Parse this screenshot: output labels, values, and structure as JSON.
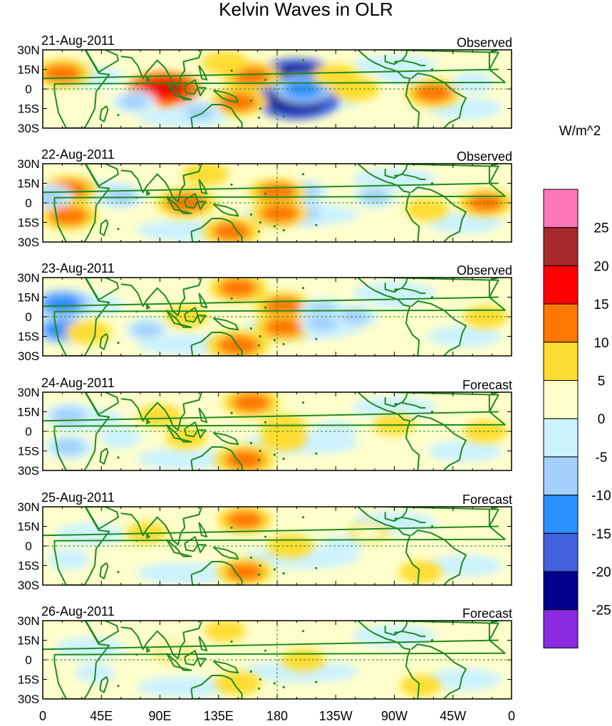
{
  "chart_data": {
    "type": "heatmap",
    "title": "Kelvin Waves in OLR",
    "units": "W/m^2",
    "lat_tick_labels": [
      "30N",
      "15N",
      "0",
      "15S",
      "30S"
    ],
    "lon_tick_labels": [
      "0",
      "45E",
      "90E",
      "135E",
      "180",
      "135W",
      "90W",
      "45W",
      "0"
    ],
    "lon_range": [
      0,
      360
    ],
    "lat_range": [
      -30,
      30
    ],
    "colorbar": {
      "levels": [
        -25,
        -20,
        -15,
        -10,
        -5,
        0,
        5,
        10,
        15,
        20,
        25
      ],
      "level_labels": [
        "25",
        "20",
        "15",
        "10",
        "5",
        "0",
        "-5",
        "-10",
        "-15",
        "-20",
        "-25"
      ],
      "colors_top_to_bottom": [
        "#ff77bb",
        "#a62a2a",
        "#ff0000",
        "#ff7700",
        "#ffdd33",
        "#ffffcc",
        "#ccf2ff",
        "#a3d0ff",
        "#2a90ff",
        "#4060dd",
        "#00008b",
        "#8a2be2"
      ]
    },
    "panels": [
      {
        "date": "21-Aug-2011",
        "label": "Observed",
        "features": [
          {
            "lon": 195,
            "lat": 8,
            "value": -24
          },
          {
            "lon": 195,
            "lat": -8,
            "value": -24
          },
          {
            "lon": 200,
            "lat": 0,
            "value": -12
          },
          {
            "lon": 93,
            "lat": 0,
            "value": 18
          },
          {
            "lon": 160,
            "lat": 10,
            "value": 12
          },
          {
            "lon": 150,
            "lat": -10,
            "value": 12
          },
          {
            "lon": 15,
            "lat": 12,
            "value": 12
          },
          {
            "lon": 300,
            "lat": -3,
            "value": 12
          },
          {
            "lon": 225,
            "lat": 10,
            "value": 7
          },
          {
            "lon": 240,
            "lat": 0,
            "value": 8
          },
          {
            "lon": 120,
            "lat": -18,
            "value": -6
          },
          {
            "lon": 70,
            "lat": -10,
            "value": -6
          },
          {
            "lon": 275,
            "lat": 12,
            "value": -5
          },
          {
            "lon": 330,
            "lat": 5,
            "value": -5
          },
          {
            "lon": 140,
            "lat": 20,
            "value": 7
          }
        ]
      },
      {
        "date": "22-Aug-2011",
        "label": "Observed",
        "features": [
          {
            "lon": 200,
            "lat": 8,
            "value": -8
          },
          {
            "lon": 200,
            "lat": -8,
            "value": -8
          },
          {
            "lon": 180,
            "lat": 8,
            "value": 12
          },
          {
            "lon": 182,
            "lat": -8,
            "value": 12
          },
          {
            "lon": 110,
            "lat": 0,
            "value": 13
          },
          {
            "lon": 145,
            "lat": -22,
            "value": 12
          },
          {
            "lon": 20,
            "lat": 10,
            "value": 12
          },
          {
            "lon": 20,
            "lat": -10,
            "value": 12
          },
          {
            "lon": 125,
            "lat": 22,
            "value": 7
          },
          {
            "lon": 340,
            "lat": 0,
            "value": 11
          },
          {
            "lon": 60,
            "lat": 5,
            "value": -7
          },
          {
            "lon": 255,
            "lat": 5,
            "value": -6
          },
          {
            "lon": 295,
            "lat": -5,
            "value": 6
          },
          {
            "lon": 5,
            "lat": 5,
            "value": -7
          }
        ]
      },
      {
        "date": "23-Aug-2011",
        "label": "Observed",
        "features": [
          {
            "lon": 185,
            "lat": 8,
            "value": 12
          },
          {
            "lon": 185,
            "lat": -8,
            "value": 12
          },
          {
            "lon": 150,
            "lat": 22,
            "value": 12
          },
          {
            "lon": 150,
            "lat": -22,
            "value": 14
          },
          {
            "lon": 215,
            "lat": 5,
            "value": -7
          },
          {
            "lon": 215,
            "lat": -5,
            "value": -7
          },
          {
            "lon": 240,
            "lat": 0,
            "value": -6
          },
          {
            "lon": 15,
            "lat": 10,
            "value": -12
          },
          {
            "lon": 15,
            "lat": -10,
            "value": -11
          },
          {
            "lon": 35,
            "lat": -12,
            "value": 7
          },
          {
            "lon": 110,
            "lat": 0,
            "value": 6
          },
          {
            "lon": 340,
            "lat": 0,
            "value": 6
          },
          {
            "lon": 80,
            "lat": -10,
            "value": -6
          },
          {
            "lon": 270,
            "lat": 15,
            "value": -5
          }
        ]
      },
      {
        "date": "24-Aug-2011",
        "label": "Forecast",
        "features": [
          {
            "lon": 160,
            "lat": 22,
            "value": 12
          },
          {
            "lon": 155,
            "lat": -22,
            "value": 13
          },
          {
            "lon": 185,
            "lat": 4,
            "value": 7
          },
          {
            "lon": 185,
            "lat": -6,
            "value": 7
          },
          {
            "lon": 20,
            "lat": 12,
            "value": -8
          },
          {
            "lon": 20,
            "lat": -12,
            "value": -8
          },
          {
            "lon": 225,
            "lat": 0,
            "value": -5
          },
          {
            "lon": 110,
            "lat": -5,
            "value": 5
          },
          {
            "lon": 90,
            "lat": 12,
            "value": 6
          },
          {
            "lon": 340,
            "lat": 0,
            "value": 6
          },
          {
            "lon": 270,
            "lat": 5,
            "value": 5
          },
          {
            "lon": 60,
            "lat": -5,
            "value": -5
          }
        ]
      },
      {
        "date": "25-Aug-2011",
        "label": "Forecast",
        "features": [
          {
            "lon": 155,
            "lat": 20,
            "value": 11
          },
          {
            "lon": 155,
            "lat": -20,
            "value": 11
          },
          {
            "lon": 190,
            "lat": 0,
            "value": 7
          },
          {
            "lon": 290,
            "lat": -20,
            "value": 6
          },
          {
            "lon": 80,
            "lat": 10,
            "value": 5
          },
          {
            "lon": 20,
            "lat": -10,
            "value": -5
          },
          {
            "lon": 230,
            "lat": 0,
            "value": -4
          },
          {
            "lon": 250,
            "lat": 10,
            "value": 4
          }
        ]
      },
      {
        "date": "26-Aug-2011",
        "label": "Forecast",
        "features": [
          {
            "lon": 150,
            "lat": -18,
            "value": 7
          },
          {
            "lon": 200,
            "lat": 0,
            "value": 6
          },
          {
            "lon": 140,
            "lat": 22,
            "value": 5
          },
          {
            "lon": 290,
            "lat": -20,
            "value": 5
          },
          {
            "lon": 40,
            "lat": -10,
            "value": -4
          },
          {
            "lon": 100,
            "lat": 5,
            "value": 3
          }
        ]
      }
    ]
  }
}
